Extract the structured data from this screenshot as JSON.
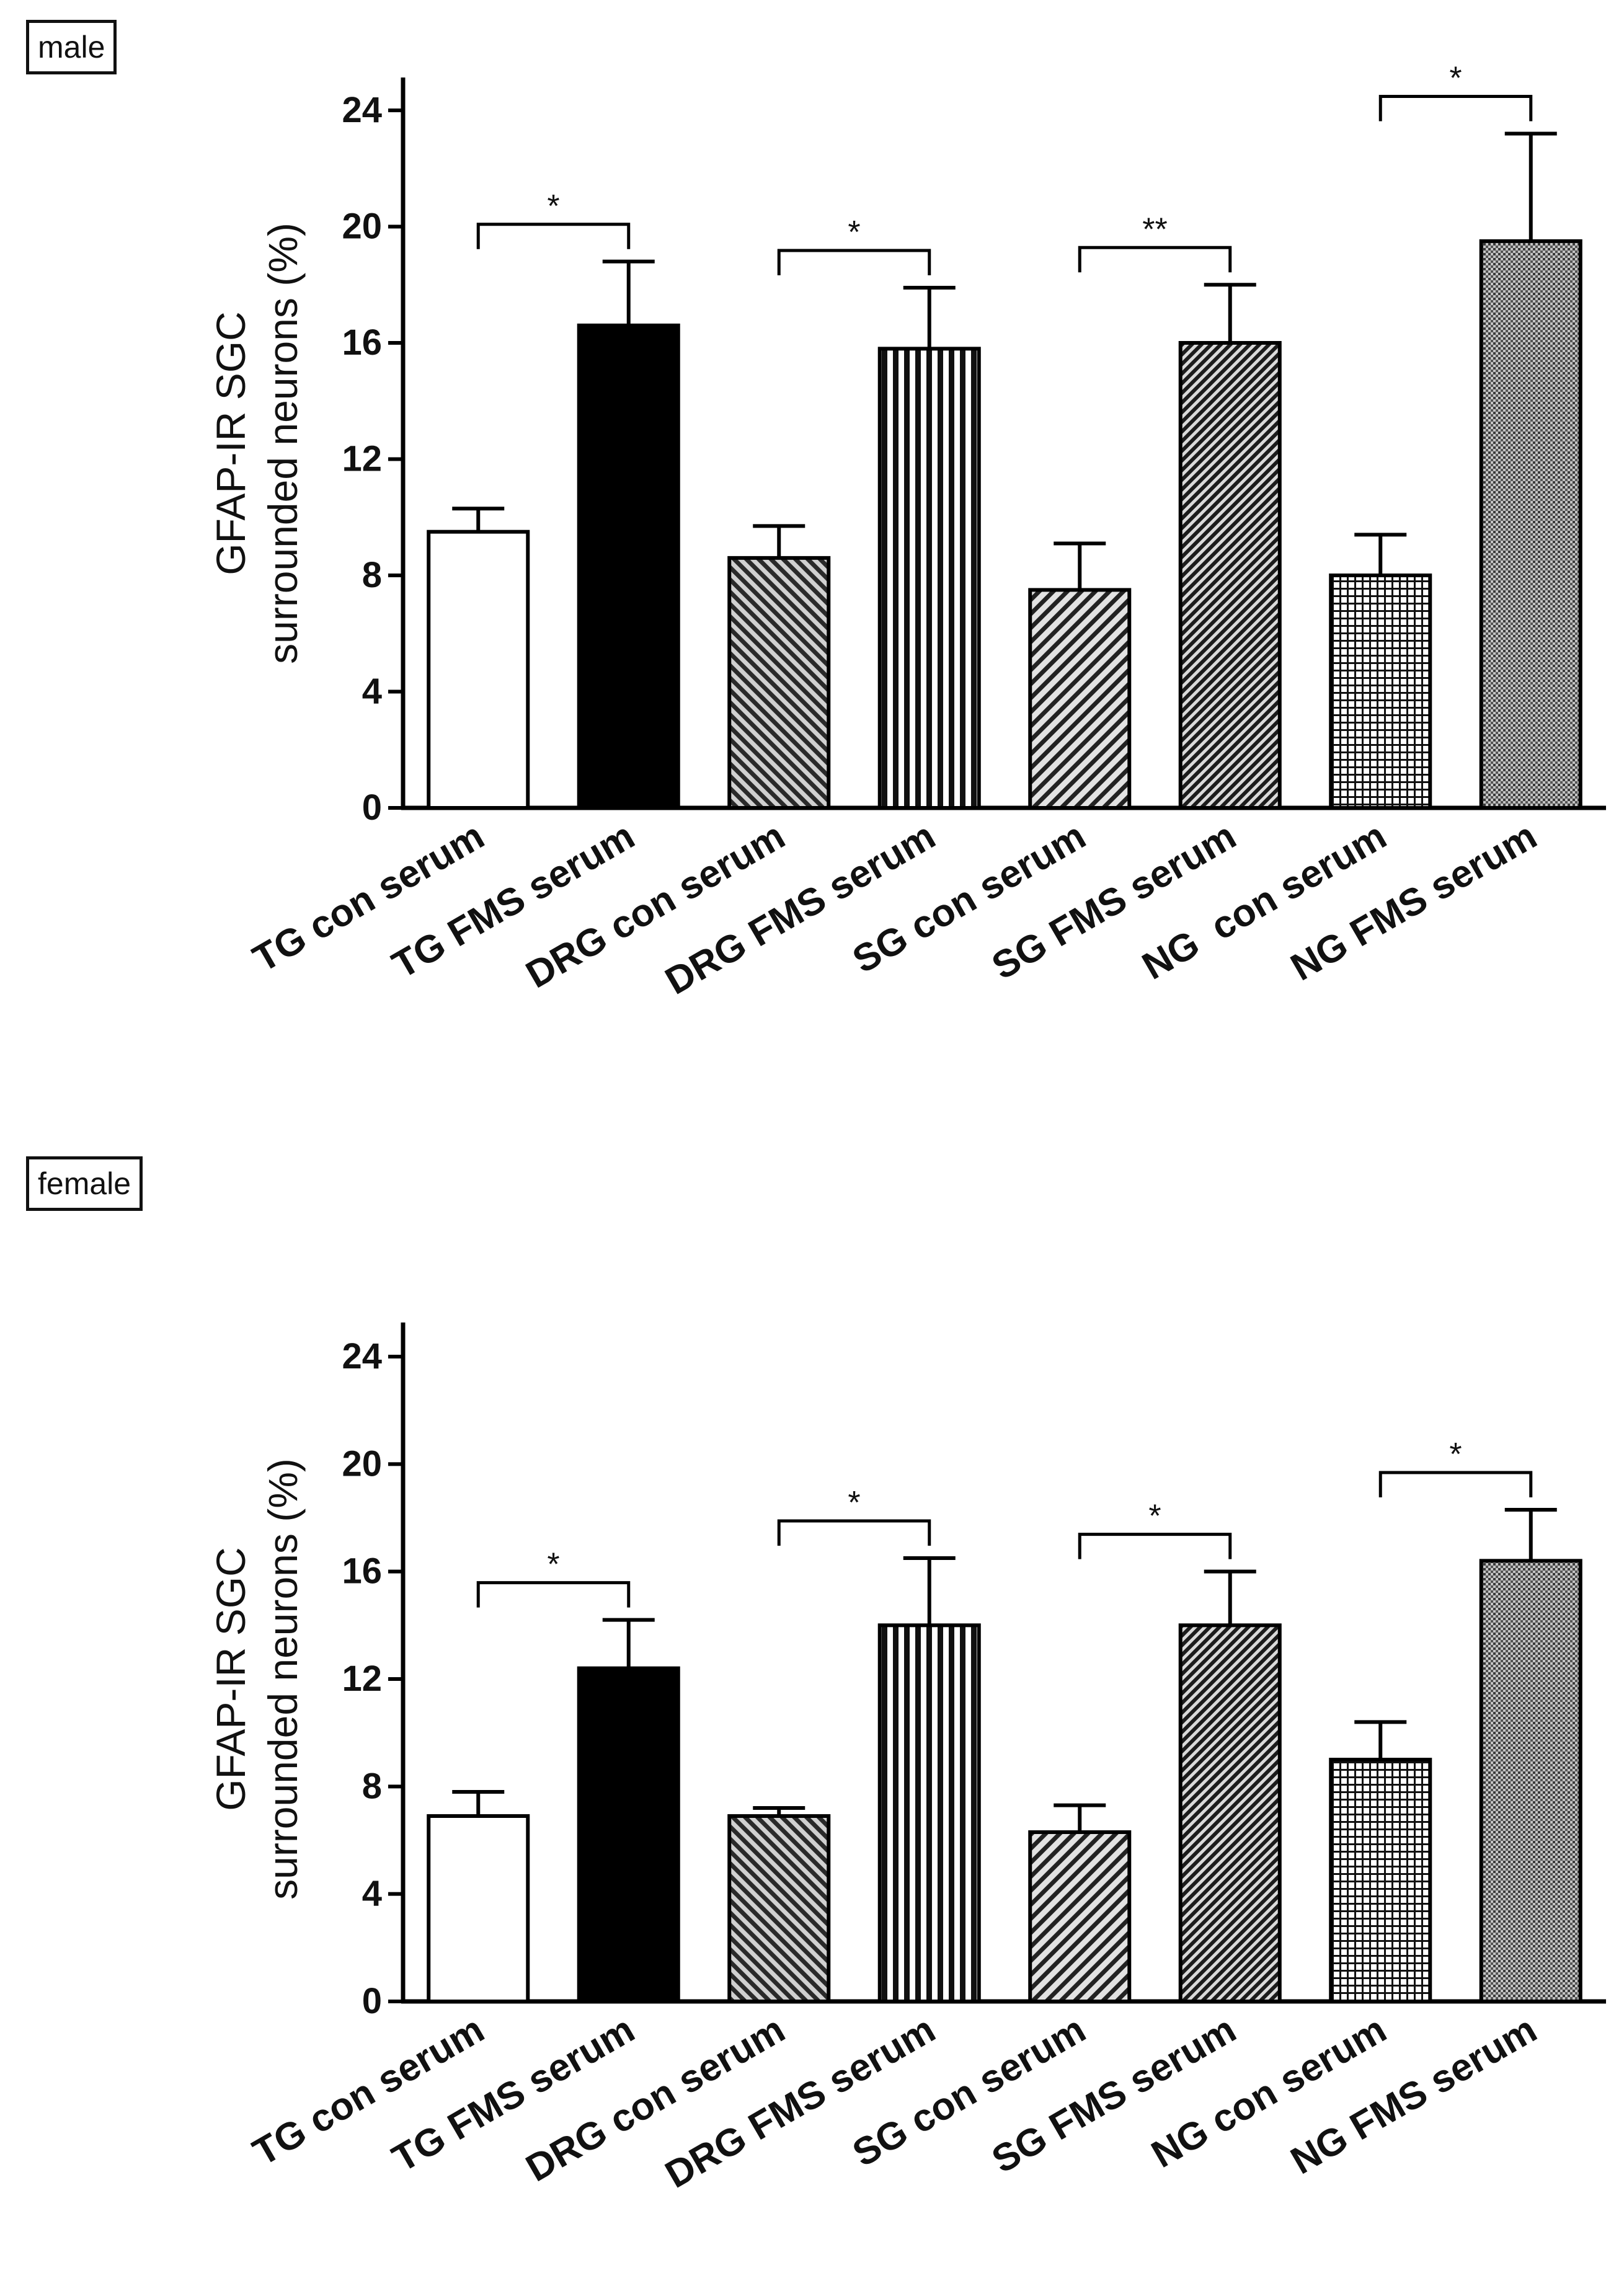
{
  "chart_data": [
    {
      "type": "bar",
      "panel_label": "male",
      "ylabel": "GFAP-IR SGC\nsurrounded neurons (%)",
      "ylim": [
        0,
        24
      ],
      "yticks": [
        "0",
        "4",
        "8",
        "12",
        "16",
        "20",
        "24"
      ],
      "categories": [
        "TG con serum",
        "TG FMS serum",
        "DRG con serum",
        "DRG FMS serum",
        "SG con serum",
        "SG FMS serum",
        "NG  con serum",
        "NG FMS serum"
      ],
      "values": [
        9.5,
        16.6,
        8.6,
        15.8,
        7.5,
        16.0,
        8.0,
        19.5
      ],
      "errors": [
        0.8,
        2.2,
        1.1,
        2.1,
        1.6,
        2.0,
        1.4,
        3.7
      ],
      "fills": [
        "white",
        "black",
        "diag-left",
        "vertical",
        "diag-right",
        "diag-right-dense",
        "grid",
        "dots"
      ],
      "significance": [
        {
          "from": 0,
          "to": 1,
          "label": "*"
        },
        {
          "from": 2,
          "to": 3,
          "label": "*"
        },
        {
          "from": 4,
          "to": 5,
          "label": "**"
        },
        {
          "from": 6,
          "to": 7,
          "label": "*"
        }
      ]
    },
    {
      "type": "bar",
      "panel_label": "female",
      "ylabel": "GFAP-IR SGC\nsurrounded neurons (%)",
      "ylim": [
        0,
        24
      ],
      "yticks": [
        "0",
        "4",
        "8",
        "12",
        "16",
        "20",
        "24"
      ],
      "categories": [
        "TG con serum",
        "TG FMS serum",
        "DRG con serum",
        "DRG FMS serum",
        "SG con serum",
        "SG FMS serum",
        "NG con serum",
        "NG FMS serum"
      ],
      "values": [
        6.9,
        12.4,
        6.9,
        14.0,
        6.3,
        14.0,
        9.0,
        16.4
      ],
      "errors": [
        0.9,
        1.8,
        0.3,
        2.5,
        1.0,
        2.0,
        1.4,
        1.9
      ],
      "fills": [
        "white",
        "black",
        "diag-left",
        "vertical",
        "diag-right",
        "diag-right-dense",
        "grid",
        "dots"
      ],
      "significance": [
        {
          "from": 0,
          "to": 1,
          "label": "*"
        },
        {
          "from": 2,
          "to": 3,
          "label": "*"
        },
        {
          "from": 4,
          "to": 5,
          "label": "*"
        },
        {
          "from": 6,
          "to": 7,
          "label": "*"
        }
      ]
    }
  ]
}
